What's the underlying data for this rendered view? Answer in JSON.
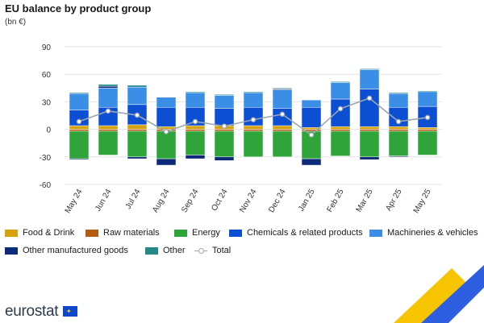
{
  "header": {
    "title": "EU balance by product group",
    "unit": "(bn €)"
  },
  "branding": {
    "logo_text": "eurostat"
  },
  "chart_data": {
    "type": "bar",
    "stacked": true,
    "title": "EU balance by product group",
    "ylabel": "(bn €)",
    "ylim": [
      -60,
      90
    ],
    "yticks": [
      -60,
      -30,
      0,
      30,
      60,
      90
    ],
    "grid": true,
    "legend_position": "bottom",
    "categories": [
      "May 24",
      "Jun 24",
      "Jul 24",
      "Aug 24",
      "Sep 24",
      "Oct 24",
      "Nov 24",
      "Dec 24",
      "Jan 25",
      "Feb 25",
      "Mar 25",
      "Apr 25",
      "May 25"
    ],
    "series": [
      {
        "name": "Food & Drink",
        "color": "#d4a20c",
        "values": [
          4,
          4,
          5,
          3,
          4,
          4,
          4,
          4,
          2,
          3,
          3,
          3,
          2
        ]
      },
      {
        "name": "Raw materials",
        "color": "#b35c12",
        "values": [
          -2,
          -2,
          -2,
          -2,
          -2,
          -2,
          -2,
          -2,
          -2,
          -2,
          -2,
          -2,
          -2
        ]
      },
      {
        "name": "Energy",
        "color": "#2ea43a",
        "values": [
          -30,
          -26,
          -28,
          -30,
          -26,
          -28,
          -28,
          -28,
          -30,
          -27,
          -28,
          -27,
          -26
        ]
      },
      {
        "name": "Chemicals  & related products",
        "color": "#0c4fd3",
        "values": [
          17,
          20,
          22,
          21,
          20,
          19,
          20,
          19,
          22,
          30,
          41,
          21,
          23
        ]
      },
      {
        "name": "Machineries & vehicles",
        "color": "#3b8ee6",
        "values": [
          18,
          21,
          19,
          11,
          16,
          14,
          16,
          20,
          8,
          18,
          21,
          15,
          16
        ]
      },
      {
        "name": "Other manufactured goods",
        "color": "#0d2a7a",
        "values": [
          -1,
          2,
          -2,
          -7,
          -4,
          -4,
          0,
          1,
          -7,
          0,
          -3,
          -1,
          0
        ]
      },
      {
        "name": "Other",
        "color": "#238a87",
        "values": [
          1,
          2,
          2,
          0,
          1,
          1,
          1,
          1,
          0,
          1,
          1,
          1,
          1
        ]
      },
      {
        "name": "Total",
        "type": "line",
        "color": "#9aa6b2",
        "values": [
          8.5,
          20,
          15.5,
          -2.5,
          8.5,
          3.5,
          10.5,
          16.5,
          -6,
          22.5,
          34,
          8.5,
          13
        ]
      }
    ]
  }
}
